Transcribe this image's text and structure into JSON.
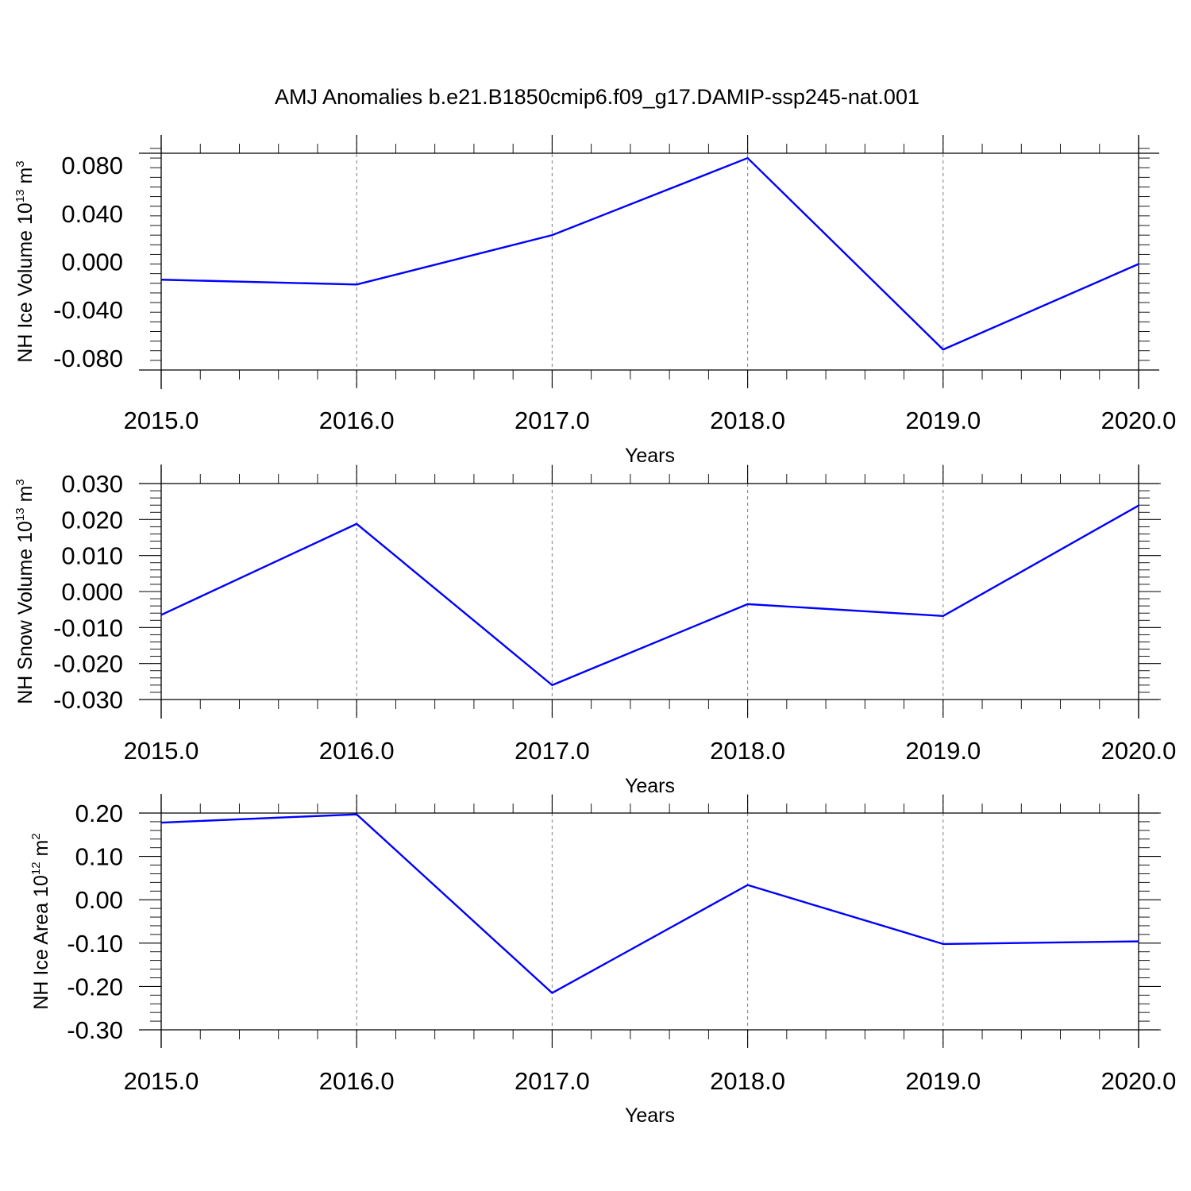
{
  "figure": {
    "title": "AMJ Anomalies b.e21.B1850cmip6.f09_g17.DAMIP-ssp245-nat.001",
    "line_color": "#0000ff"
  },
  "chart_data": [
    {
      "type": "line",
      "xlabel": "Years",
      "ylabel": {
        "text": "NH Ice Volume 10",
        "sup": "13",
        "unit": " m",
        "unit_sup": "3"
      },
      "x": [
        2015,
        2016,
        2017,
        2018,
        2019,
        2020
      ],
      "xticks": [
        "2015.0",
        "2016.0",
        "2017.0",
        "2018.0",
        "2019.0",
        "2020.0"
      ],
      "xlim": [
        2015,
        2020
      ],
      "series": [
        {
          "values": [
            -0.015,
            -0.019,
            0.022,
            0.086,
            -0.073,
            -0.002
          ]
        }
      ],
      "ylim": [
        -0.09,
        0.09
      ],
      "yticks": [
        0.08,
        0.04,
        0.0,
        -0.04,
        -0.08
      ],
      "ytick_labels": [
        "0.080",
        "0.040",
        "0.000",
        "-0.040",
        "-0.080"
      ],
      "ygrid": false,
      "xgrid": true
    },
    {
      "type": "line",
      "xlabel": "Years",
      "ylabel": {
        "text": "NH Snow Volume 10",
        "sup": "13",
        "unit": " m",
        "unit_sup": "3"
      },
      "x": [
        2015,
        2016,
        2017,
        2018,
        2019,
        2020
      ],
      "xticks": [
        "2015.0",
        "2016.0",
        "2017.0",
        "2018.0",
        "2019.0",
        "2020.0"
      ],
      "xlim": [
        2015,
        2020
      ],
      "series": [
        {
          "values": [
            -0.0065,
            0.0188,
            -0.026,
            -0.0035,
            -0.0068,
            0.0239
          ]
        }
      ],
      "ylim": [
        -0.03,
        0.03
      ],
      "yticks": [
        0.03,
        0.02,
        0.01,
        0.0,
        -0.01,
        -0.02,
        -0.03
      ],
      "ytick_labels": [
        "0.030",
        "0.020",
        "0.010",
        "0.000",
        "-0.010",
        "-0.020",
        "-0.030"
      ],
      "ygrid": false,
      "xgrid": true
    },
    {
      "type": "line",
      "xlabel": "Years",
      "ylabel": {
        "text": "NH Ice Area 10",
        "sup": "12",
        "unit": " m",
        "unit_sup": "2"
      },
      "x": [
        2015,
        2016,
        2017,
        2018,
        2019,
        2020
      ],
      "xticks": [
        "2015.0",
        "2016.0",
        "2017.0",
        "2018.0",
        "2019.0",
        "2020.0"
      ],
      "xlim": [
        2015,
        2020
      ],
      "series": [
        {
          "values": [
            0.178,
            0.197,
            -0.215,
            0.034,
            -0.102,
            -0.096
          ]
        }
      ],
      "ylim": [
        -0.3,
        0.2
      ],
      "yticks": [
        0.2,
        0.1,
        0.0,
        -0.1,
        -0.2,
        -0.3
      ],
      "ytick_labels": [
        "0.20",
        "0.10",
        "0.00",
        "-0.10",
        "-0.20",
        "-0.30"
      ],
      "ygrid": false,
      "xgrid": true
    }
  ]
}
